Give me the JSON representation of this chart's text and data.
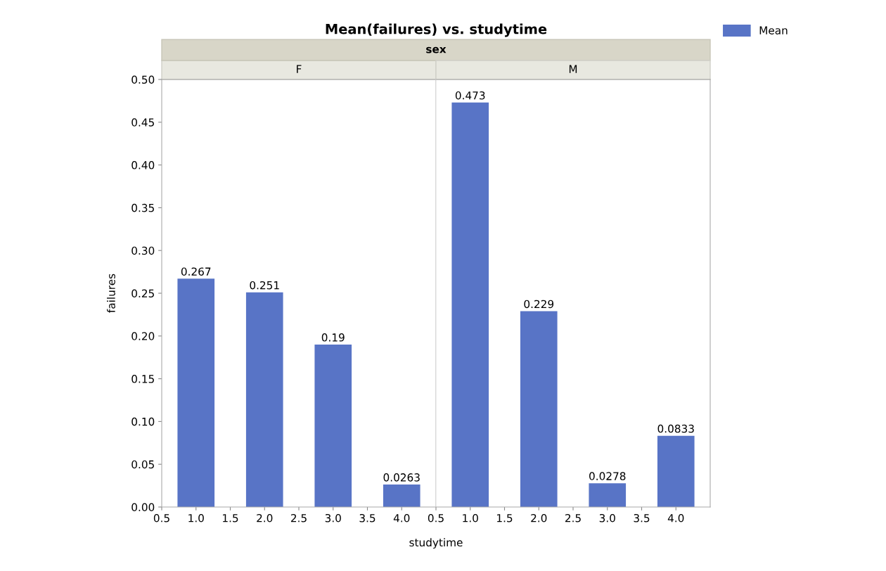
{
  "chart_data": [
    {
      "type": "bar",
      "title": "Mean(failures) vs. studytime",
      "annotations": [
        "sex"
      ],
      "subtitle": "F",
      "xlabel": "studytime",
      "ylabel": "failures",
      "x": [
        1.0,
        2.0,
        3.0,
        4.0
      ],
      "series": [
        {
          "name": "Mean",
          "color": "#5874c6",
          "values": [
            0.267,
            0.251,
            0.19,
            0.0263
          ]
        }
      ],
      "data_labels": true,
      "legend": "top right",
      "xlim": [
        0.5,
        4.5
      ],
      "xticks": [
        {
          "value": 0.5,
          "label": "0.5"
        },
        {
          "value": 1.0,
          "label": "1.0"
        },
        {
          "value": 1.5,
          "label": "1.5"
        },
        {
          "value": 2.0,
          "label": "2.0"
        },
        {
          "value": 2.5,
          "label": "2.5"
        },
        {
          "value": 3.0,
          "label": "3.0"
        },
        {
          "value": 3.5,
          "label": "3.5"
        },
        {
          "value": 4.0,
          "label": "4.0"
        }
      ],
      "ylim": [
        0,
        0.5
      ],
      "yticks": [
        {
          "value": 0,
          "label": "0.00"
        },
        {
          "value": 0.05,
          "label": "0.05"
        },
        {
          "value": 0.1,
          "label": "0.10"
        },
        {
          "value": 0.15,
          "label": "0.15"
        },
        {
          "value": 0.2,
          "label": "0.20"
        },
        {
          "value": 0.25,
          "label": "0.25"
        },
        {
          "value": 0.3,
          "label": "0.30"
        },
        {
          "value": 0.35,
          "label": "0.35"
        },
        {
          "value": 0.4,
          "label": "0.40"
        },
        {
          "value": 0.45,
          "label": "0.45"
        },
        {
          "value": 0.5,
          "label": "0.50"
        }
      ]
    },
    {
      "type": "bar",
      "subtitle": "M",
      "x": [
        1.0,
        2.0,
        3.0,
        4.0
      ],
      "series": [
        {
          "name": "Mean",
          "color": "#5874c6",
          "values": [
            0.473,
            0.229,
            0.0278,
            0.0833
          ]
        }
      ],
      "data_labels": true,
      "tick_labels": "x",
      "xlim": [
        0.5,
        4.5
      ],
      "xticks": [
        {
          "value": 0.5,
          "label": "0.5"
        },
        {
          "value": 1.0,
          "label": "1.0"
        },
        {
          "value": 1.5,
          "label": "1.5"
        },
        {
          "value": 2.0,
          "label": "2.0"
        },
        {
          "value": 2.5,
          "label": "2.5"
        },
        {
          "value": 3.0,
          "label": "3.0"
        },
        {
          "value": 3.5,
          "label": "3.5"
        },
        {
          "value": 4.0,
          "label": "4.0"
        }
      ],
      "ylim": [
        0,
        0.5
      ]
    }
  ]
}
